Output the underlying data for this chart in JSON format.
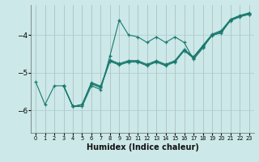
{
  "xlabel": "Humidex (Indice chaleur)",
  "bg_color": "#cce8e8",
  "grid_color": "#aacccc",
  "line_color": "#1a7a6e",
  "xlim": [
    -0.5,
    23.5
  ],
  "ylim": [
    -6.6,
    -3.2
  ],
  "yticks": [
    -6,
    -5,
    -4
  ],
  "xticks": [
    0,
    1,
    2,
    3,
    4,
    5,
    6,
    7,
    8,
    9,
    10,
    11,
    12,
    13,
    14,
    15,
    16,
    17,
    18,
    19,
    20,
    21,
    22,
    23
  ],
  "s1_x": [
    0,
    1,
    2,
    3,
    4,
    5,
    6,
    7,
    8,
    9,
    10,
    11,
    12,
    13,
    14,
    15,
    16,
    17,
    18,
    19,
    20,
    21,
    22,
    23
  ],
  "s1_y": [
    -5.25,
    -5.85,
    -5.35,
    -5.35,
    -5.9,
    -5.9,
    -5.35,
    -5.45,
    -4.55,
    -3.6,
    -4.0,
    -4.05,
    -4.2,
    -4.05,
    -4.2,
    -4.05,
    -4.2,
    -4.65,
    -4.35,
    -4.0,
    -3.95,
    -3.6,
    -3.5,
    -3.45
  ],
  "s2_x": [
    3,
    4,
    5,
    6,
    7,
    8,
    9,
    10,
    11,
    12,
    13,
    14,
    15,
    16,
    17,
    18,
    19,
    20,
    21,
    22,
    23
  ],
  "s2_y": [
    -5.35,
    -5.9,
    -5.85,
    -5.3,
    -5.4,
    -4.7,
    -4.8,
    -4.72,
    -4.72,
    -4.82,
    -4.72,
    -4.82,
    -4.72,
    -4.42,
    -4.62,
    -4.32,
    -4.02,
    -3.92,
    -3.62,
    -3.52,
    -3.45
  ],
  "s3_x": [
    3,
    4,
    5,
    6,
    7,
    8,
    9,
    10,
    11,
    12,
    13,
    14,
    15,
    16,
    17,
    18,
    19,
    20,
    21,
    22,
    23
  ],
  "s3_y": [
    -5.35,
    -5.9,
    -5.85,
    -5.28,
    -5.38,
    -4.68,
    -4.78,
    -4.7,
    -4.7,
    -4.8,
    -4.7,
    -4.8,
    -4.7,
    -4.4,
    -4.6,
    -4.3,
    -4.0,
    -3.9,
    -3.6,
    -3.5,
    -3.43
  ],
  "s4_x": [
    3,
    4,
    5,
    6,
    7,
    8,
    9,
    10,
    11,
    12,
    13,
    14,
    15,
    16,
    17,
    18,
    19,
    20,
    21,
    22,
    23
  ],
  "s4_y": [
    -5.35,
    -5.9,
    -5.85,
    -5.26,
    -5.36,
    -4.66,
    -4.76,
    -4.68,
    -4.68,
    -4.78,
    -4.68,
    -4.78,
    -4.68,
    -4.38,
    -4.58,
    -4.28,
    -3.98,
    -3.88,
    -3.58,
    -3.48,
    -3.41
  ]
}
